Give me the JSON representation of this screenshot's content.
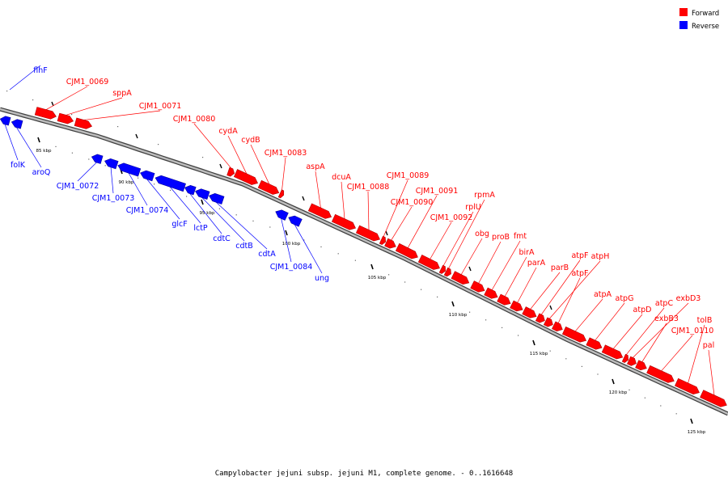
{
  "legend": [
    {
      "label": "Forward",
      "color": "#ff0000"
    },
    {
      "label": "Reverse",
      "color": "#0000ff"
    }
  ],
  "caption": "Campylobacter jejuni subsp. jejuni M1, complete genome. - 0..1616648",
  "colors": {
    "forward": "#ff0000",
    "reverse": "#0000ff",
    "backbone": "#808080"
  },
  "scale_labels": [
    "85 kbp",
    "90 kbp",
    "95 kbp",
    "100 kbp",
    "105 kbp",
    "110 kbp",
    "115 kbp",
    "120 kbp",
    "125 kbp"
  ],
  "genes": [
    {
      "name": "flhF",
      "strand": "reverse"
    },
    {
      "name": "folK",
      "strand": "reverse"
    },
    {
      "name": "aroQ",
      "strand": "reverse"
    },
    {
      "name": "CJM1_0069",
      "strand": "forward"
    },
    {
      "name": "sppA",
      "strand": "forward"
    },
    {
      "name": "CJM1_0071",
      "strand": "forward"
    },
    {
      "name": "CJM1_0072",
      "strand": "reverse"
    },
    {
      "name": "CJM1_0073",
      "strand": "reverse"
    },
    {
      "name": "CJM1_0074",
      "strand": "reverse"
    },
    {
      "name": "glcF",
      "strand": "reverse"
    },
    {
      "name": "lctP",
      "strand": "reverse"
    },
    {
      "name": "cdtC",
      "strand": "reverse"
    },
    {
      "name": "cdtB",
      "strand": "reverse"
    },
    {
      "name": "cdtA",
      "strand": "reverse"
    },
    {
      "name": "CJM1_0080",
      "strand": "forward"
    },
    {
      "name": "cydA",
      "strand": "forward"
    },
    {
      "name": "cydB",
      "strand": "forward"
    },
    {
      "name": "CJM1_0083",
      "strand": "forward"
    },
    {
      "name": "CJM1_0084",
      "strand": "reverse"
    },
    {
      "name": "ung",
      "strand": "reverse"
    },
    {
      "name": "aspA",
      "strand": "forward"
    },
    {
      "name": "dcuA",
      "strand": "forward"
    },
    {
      "name": "CJM1_0088",
      "strand": "forward"
    },
    {
      "name": "CJM1_0089",
      "strand": "forward"
    },
    {
      "name": "CJM1_0090",
      "strand": "forward"
    },
    {
      "name": "CJM1_0091",
      "strand": "forward"
    },
    {
      "name": "CJM1_0092",
      "strand": "forward"
    },
    {
      "name": "rplU",
      "strand": "forward"
    },
    {
      "name": "rpmA",
      "strand": "forward"
    },
    {
      "name": "obg",
      "strand": "forward"
    },
    {
      "name": "proB",
      "strand": "forward"
    },
    {
      "name": "fmt",
      "strand": "forward"
    },
    {
      "name": "birA",
      "strand": "forward"
    },
    {
      "name": "parA",
      "strand": "forward"
    },
    {
      "name": "parB",
      "strand": "forward"
    },
    {
      "name": "atpF",
      "strand": "forward"
    },
    {
      "name": "atpH",
      "strand": "forward"
    },
    {
      "name": "atpF",
      "strand": "forward"
    },
    {
      "name": "atpA",
      "strand": "forward"
    },
    {
      "name": "atpG",
      "strand": "forward"
    },
    {
      "name": "atpD",
      "strand": "forward"
    },
    {
      "name": "atpC",
      "strand": "forward"
    },
    {
      "name": "exbD3",
      "strand": "forward"
    },
    {
      "name": "exbB3",
      "strand": "forward"
    },
    {
      "name": "CJM1_0110",
      "strand": "forward"
    },
    {
      "name": "tolB",
      "strand": "forward"
    },
    {
      "name": "pal",
      "strand": "forward"
    }
  ]
}
